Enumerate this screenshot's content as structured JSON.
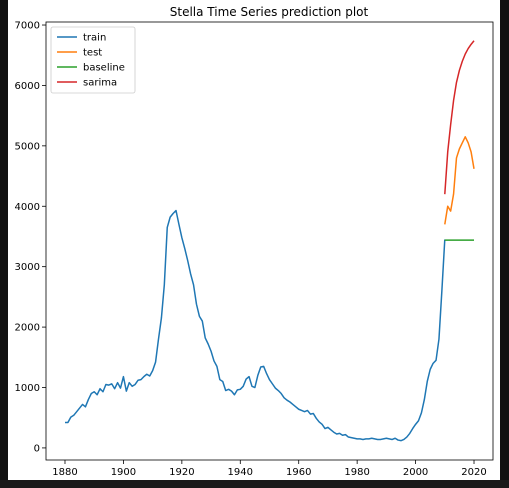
{
  "chart_data": {
    "type": "line",
    "title": "Stella Time Series prediction plot",
    "xlabel": "",
    "ylabel": "",
    "xlim": [
      1873.5,
      2026.5
    ],
    "ylim": [
      -200,
      7050
    ],
    "xticks": [
      1880,
      1900,
      1920,
      1940,
      1960,
      1980,
      2000,
      2020
    ],
    "yticks": [
      0,
      1000,
      2000,
      3000,
      4000,
      5000,
      6000,
      7000
    ],
    "grid": false,
    "legend_position": "top-left",
    "series": [
      {
        "name": "train",
        "color": "#1f77b4",
        "x": [
          1880,
          1881,
          1882,
          1883,
          1884,
          1885,
          1886,
          1887,
          1888,
          1889,
          1890,
          1891,
          1892,
          1893,
          1894,
          1895,
          1896,
          1897,
          1898,
          1899,
          1900,
          1901,
          1902,
          1903,
          1904,
          1905,
          1906,
          1907,
          1908,
          1909,
          1910,
          1911,
          1912,
          1913,
          1914,
          1915,
          1916,
          1917,
          1918,
          1919,
          1920,
          1921,
          1922,
          1923,
          1924,
          1925,
          1926,
          1927,
          1928,
          1929,
          1930,
          1931,
          1932,
          1933,
          1934,
          1935,
          1936,
          1937,
          1938,
          1939,
          1940,
          1941,
          1942,
          1943,
          1944,
          1945,
          1946,
          1947,
          1948,
          1949,
          1950,
          1951,
          1952,
          1953,
          1954,
          1955,
          1956,
          1957,
          1958,
          1959,
          1960,
          1961,
          1962,
          1963,
          1964,
          1965,
          1966,
          1967,
          1968,
          1969,
          1970,
          1971,
          1972,
          1973,
          1974,
          1975,
          1976,
          1977,
          1978,
          1979,
          1980,
          1981,
          1982,
          1983,
          1984,
          1985,
          1986,
          1987,
          1988,
          1989,
          1990,
          1991,
          1992,
          1993,
          1994,
          1995,
          1996,
          1997,
          1998,
          1999,
          2000,
          2001,
          2002,
          2003,
          2004,
          2005,
          2006,
          2007,
          2008,
          2009,
          2010
        ],
        "y": [
          420,
          420,
          510,
          540,
          600,
          660,
          720,
          680,
          800,
          900,
          930,
          880,
          980,
          930,
          1050,
          1040,
          1060,
          980,
          1080,
          990,
          1180,
          940,
          1080,
          1020,
          1050,
          1120,
          1130,
          1180,
          1220,
          1190,
          1280,
          1420,
          1800,
          2150,
          2700,
          3650,
          3820,
          3880,
          3930,
          3700,
          3480,
          3300,
          3100,
          2880,
          2700,
          2380,
          2180,
          2100,
          1820,
          1720,
          1600,
          1440,
          1350,
          1130,
          1100,
          950,
          970,
          940,
          880,
          960,
          970,
          1020,
          1140,
          1180,
          1020,
          1000,
          1200,
          1340,
          1350,
          1230,
          1130,
          1060,
          990,
          950,
          900,
          830,
          790,
          760,
          720,
          680,
          640,
          620,
          600,
          620,
          560,
          570,
          490,
          430,
          390,
          320,
          340,
          300,
          260,
          230,
          240,
          210,
          220,
          180,
          170,
          160,
          150,
          150,
          140,
          150,
          150,
          160,
          150,
          140,
          140,
          150,
          160,
          150,
          140,
          160,
          130,
          120,
          140,
          180,
          240,
          320,
          390,
          450,
          580,
          800,
          1100,
          1300,
          1400,
          1450,
          1800,
          2600,
          3450
        ]
      },
      {
        "name": "test",
        "color": "#ff7f0e",
        "x": [
          2010,
          2011,
          2012,
          2013,
          2014,
          2015,
          2016,
          2017,
          2018,
          2019,
          2020
        ],
        "y": [
          3700,
          4000,
          3920,
          4200,
          4800,
          4950,
          5050,
          5150,
          5050,
          4900,
          4620
        ]
      },
      {
        "name": "baseline",
        "color": "#2ca02c",
        "x": [
          2010,
          2011,
          2012,
          2013,
          2014,
          2015,
          2016,
          2017,
          2018,
          2019,
          2020
        ],
        "y": [
          3440,
          3440,
          3440,
          3440,
          3440,
          3440,
          3440,
          3440,
          3440,
          3440,
          3440
        ]
      },
      {
        "name": "sarima",
        "color": "#d62728",
        "x": [
          2010,
          2011,
          2012,
          2013,
          2014,
          2015,
          2016,
          2017,
          2018,
          2019,
          2020
        ],
        "y": [
          4200,
          4900,
          5350,
          5750,
          6050,
          6250,
          6400,
          6520,
          6610,
          6680,
          6740
        ]
      }
    ]
  }
}
